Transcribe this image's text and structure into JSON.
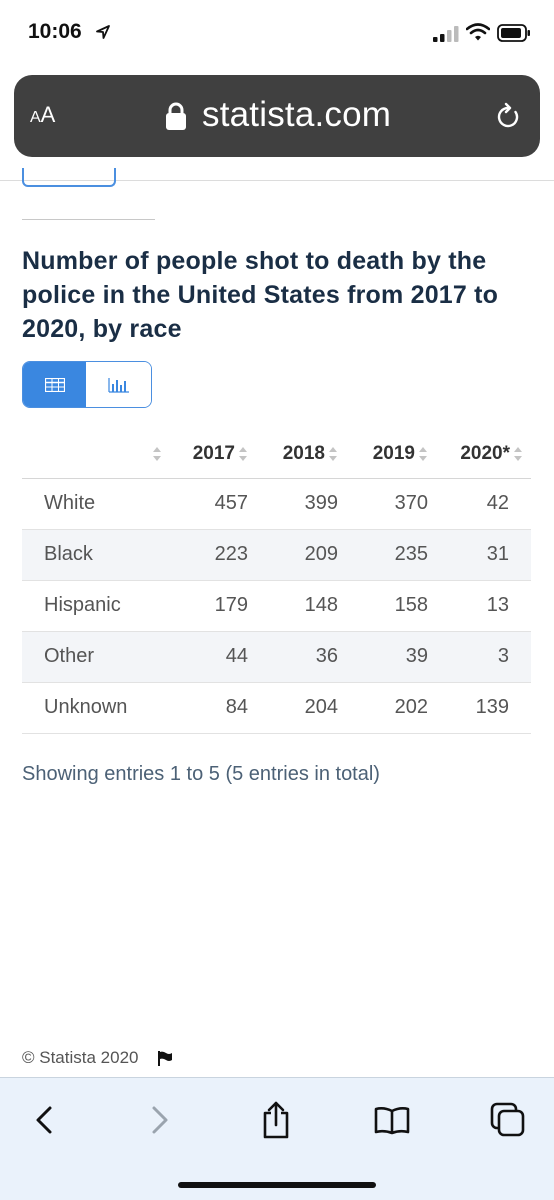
{
  "status_bar": {
    "time": "10:06"
  },
  "url_bar": {
    "aa_label_small": "A",
    "aa_label_large": "A",
    "url": "statista.com"
  },
  "page": {
    "title": "Number of people shot to death by the police in the United States from 2017 to 2020, by race",
    "table": {
      "headers": [
        "2017",
        "2018",
        "2019",
        "2020*"
      ],
      "rows": [
        {
          "label": "White",
          "values": [
            "457",
            "399",
            "370",
            "42"
          ]
        },
        {
          "label": "Black",
          "values": [
            "223",
            "209",
            "235",
            "31"
          ]
        },
        {
          "label": "Hispanic",
          "values": [
            "179",
            "148",
            "158",
            "13"
          ]
        },
        {
          "label": "Other",
          "values": [
            "44",
            "36",
            "39",
            "3"
          ]
        },
        {
          "label": "Unknown",
          "values": [
            "84",
            "204",
            "202",
            "139"
          ]
        }
      ]
    },
    "entries_text": "Showing entries 1 to 5 (5 entries in total)",
    "footer": "© Statista 2020"
  },
  "colors": {
    "accent": "#3a87e0",
    "title": "#1a2e45",
    "url_bar": "#404040",
    "toolbar": "#eaf2fb"
  },
  "icons": [
    "location-arrow-icon",
    "signal-icon",
    "wifi-icon",
    "battery-icon",
    "lock-icon",
    "reload-icon",
    "table-view-icon",
    "bar-chart-icon",
    "flag-icon",
    "back-icon",
    "forward-icon",
    "share-icon",
    "bookmarks-icon",
    "tabs-icon"
  ]
}
